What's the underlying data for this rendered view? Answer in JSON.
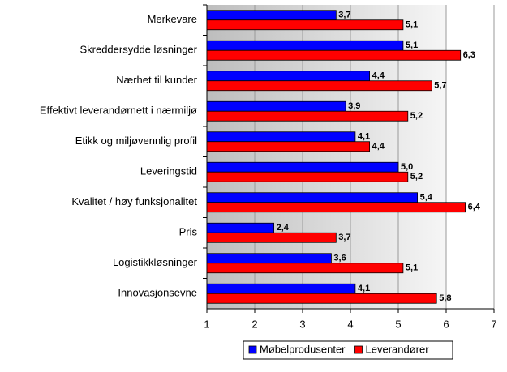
{
  "chart_data": {
    "type": "bar",
    "orientation": "horizontal",
    "categories": [
      "Merkevare",
      "Skreddersydde løsninger",
      "Nærhet til kunder",
      "Effektivt leverandørnett i nærmiljø",
      "Etikk og miljøvennlig profil",
      "Leveringstid",
      "Kvalitet / høy funksjonalitet",
      "Pris",
      "Logistikkløsninger",
      "Innovasjonsevne"
    ],
    "series": [
      {
        "name": "Møbelprodusenter",
        "color": "#0000ff",
        "values": [
          3.7,
          5.1,
          4.4,
          3.9,
          4.1,
          5.0,
          5.4,
          2.4,
          3.6,
          4.1
        ],
        "value_labels": [
          "3,7",
          "5,1",
          "4,4",
          "3,9",
          "4,1",
          "5,0",
          "5,4",
          "2,4",
          "3,6",
          "4,1"
        ]
      },
      {
        "name": "Leverandører",
        "color": "#ff0000",
        "values": [
          5.1,
          6.3,
          5.7,
          5.2,
          4.4,
          5.2,
          6.4,
          3.7,
          5.1,
          5.8
        ],
        "value_labels": [
          "5,1",
          "6,3",
          "5,7",
          "5,2",
          "4,4",
          "5,2",
          "6,4",
          "3,7",
          "5,1",
          "5,8"
        ]
      }
    ],
    "xlim": [
      1,
      7
    ],
    "xticks": [
      1,
      2,
      3,
      4,
      5,
      6,
      7
    ],
    "grid": true,
    "legend": "bottom"
  }
}
